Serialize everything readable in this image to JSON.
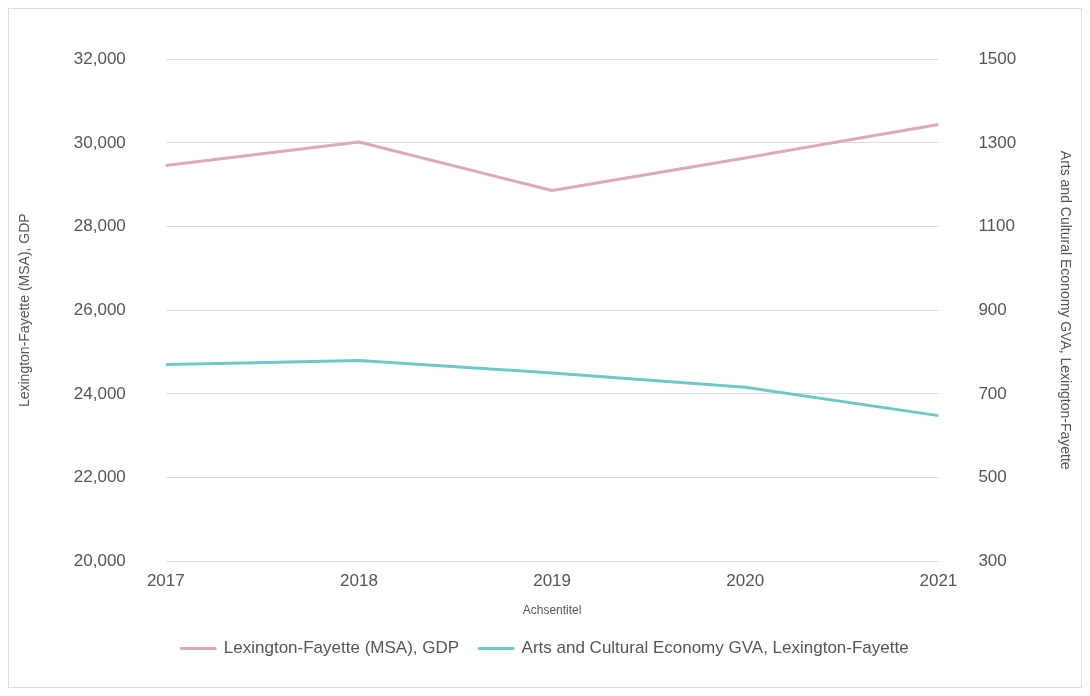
{
  "chart_data": {
    "type": "line",
    "xlabel": "Achsentitel",
    "ylabel": "Lexington-Fayette (MSA), GDP",
    "y2label": "Arts and Cultural Economy GVA, Lexington-Fayette",
    "categories": [
      "2017",
      "2018",
      "2019",
      "2020",
      "2021"
    ],
    "series": [
      {
        "name": "Lexington-Fayette (MSA), GDP",
        "color": "#dca9b5",
        "values": [
          29460,
          30020,
          28860,
          29640,
          30440
        ]
      },
      {
        "name": "Arts and Cultural Economy GVA, Lexington-Fayette",
        "color": "#6ec8c5",
        "axis": "y2",
        "values": [
          770,
          780,
          750,
          716,
          648
        ]
      }
    ],
    "ylim": [
      20000,
      32000
    ],
    "yticks": [
      {
        "value": 20000,
        "label": "20,000"
      },
      {
        "value": 22000,
        "label": "22,000"
      },
      {
        "value": 24000,
        "label": "24,000"
      },
      {
        "value": 26000,
        "label": "26,000"
      },
      {
        "value": 28000,
        "label": "28,000"
      },
      {
        "value": 30000,
        "label": "30,000"
      },
      {
        "value": 32000,
        "label": "32,000"
      }
    ],
    "y2lim": [
      300,
      1500
    ],
    "y2ticks": [
      300,
      500,
      700,
      900,
      1100,
      1300,
      1500
    ],
    "grid": "y",
    "legend": "bottom",
    "marker": "none",
    "line_style": "solid"
  }
}
